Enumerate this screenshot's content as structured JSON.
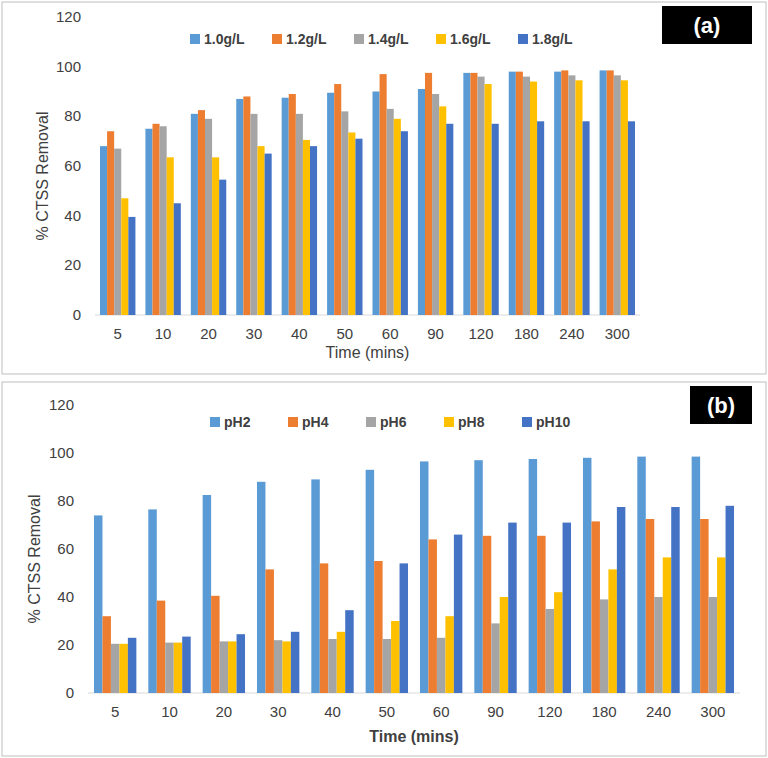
{
  "chart_data": [
    {
      "type": "bar",
      "annotation": "(a)",
      "x_label": "Time (mins)",
      "y_label": "% CTSS Removal",
      "categories": [
        "5",
        "10",
        "20",
        "30",
        "40",
        "50",
        "60",
        "90",
        "120",
        "180",
        "240",
        "300"
      ],
      "series": [
        {
          "name": "1.0g/L",
          "color": "#5b9bd5",
          "values": [
            68,
            75,
            81,
            87,
            87.5,
            89.5,
            90,
            91,
            97.5,
            98,
            98,
            98.5
          ]
        },
        {
          "name": "1.2g/L",
          "color": "#ed7d31",
          "values": [
            74,
            77,
            82.5,
            88,
            89,
            93,
            97,
            97.5,
            97.5,
            98,
            98.5,
            98.5
          ]
        },
        {
          "name": "1.4g/L",
          "color": "#a5a5a5",
          "values": [
            67,
            76,
            79,
            81,
            81,
            82,
            83,
            89,
            96,
            96,
            96.5,
            96.5
          ]
        },
        {
          "name": "1.6g/L",
          "color": "#ffc000",
          "values": [
            47,
            63.5,
            63.5,
            68,
            70.5,
            73.5,
            79,
            84,
            93,
            94,
            94.5,
            94.5
          ]
        },
        {
          "name": "1.8g/L",
          "color": "#4472c4",
          "values": [
            39.5,
            45,
            54.5,
            65,
            68,
            71,
            74,
            77,
            77,
            78,
            78,
            78
          ]
        }
      ],
      "ylim": [
        0,
        120
      ],
      "yticks": [
        0,
        20,
        40,
        60,
        80,
        100,
        120
      ],
      "grid": false,
      "legend": "top"
    },
    {
      "type": "bar",
      "annotation": "(b)",
      "x_label": "Time (mins)",
      "y_label": "% CTSS Removal",
      "categories": [
        "5",
        "10",
        "20",
        "30",
        "40",
        "50",
        "60",
        "90",
        "120",
        "180",
        "240",
        "300"
      ],
      "series": [
        {
          "name": "pH2",
          "color": "#5b9bd5",
          "values": [
            74,
            76.5,
            82.5,
            88,
            89,
            93,
            96.5,
            97,
            97.5,
            98,
            98.5,
            98.5
          ]
        },
        {
          "name": "pH4",
          "color": "#ed7d31",
          "values": [
            32,
            38.5,
            40.5,
            51.5,
            54,
            55,
            64,
            65.5,
            65.5,
            71.5,
            72.5,
            72.5
          ]
        },
        {
          "name": "pH6",
          "color": "#a5a5a5",
          "values": [
            20.5,
            21,
            21.5,
            22,
            22.5,
            22.5,
            23,
            29,
            35,
            39,
            40,
            40
          ]
        },
        {
          "name": "pH8",
          "color": "#ffc000",
          "values": [
            20.5,
            21,
            21.5,
            21.5,
            25.5,
            30,
            32,
            40,
            42,
            51.5,
            56.5,
            56.5
          ]
        },
        {
          "name": "pH10",
          "color": "#4472c4",
          "values": [
            23,
            23.5,
            24.5,
            25.5,
            34.5,
            54,
            66,
            71,
            71,
            77.5,
            77.5,
            78
          ]
        }
      ],
      "ylim": [
        0,
        120
      ],
      "yticks": [
        0,
        20,
        40,
        60,
        80,
        100,
        120
      ],
      "grid": false,
      "legend": "top"
    }
  ]
}
